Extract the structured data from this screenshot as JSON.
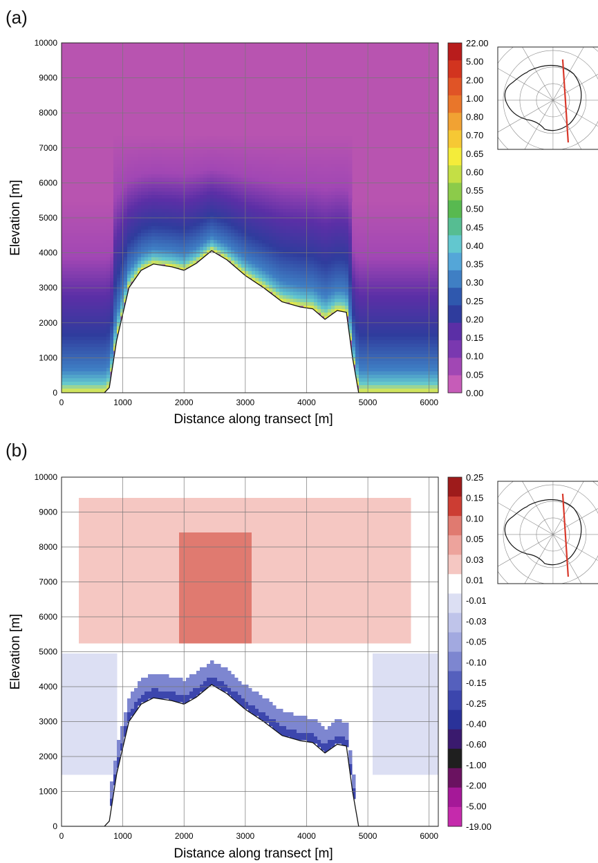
{
  "panels": [
    {
      "label": "(a)",
      "chart_data": {
        "type": "contour",
        "xlabel": "Distance along transect [m]",
        "ylabel": "Elevation [m]",
        "xlim": [
          0,
          6150
        ],
        "ylim": [
          0,
          10000
        ],
        "xticks": [
          "0",
          "1000",
          "2000",
          "3000",
          "4000",
          "5000",
          "6000"
        ],
        "yticks": [
          "0",
          "1000",
          "2000",
          "3000",
          "4000",
          "5000",
          "6000",
          "7000",
          "8000",
          "9000",
          "10000"
        ],
        "grid": true,
        "colorbar": {
          "labels": [
            "22.00",
            "5.00",
            "2.00",
            "1.00",
            "0.80",
            "0.70",
            "0.65",
            "0.60",
            "0.55",
            "0.50",
            "0.45",
            "0.40",
            "0.35",
            "0.30",
            "0.25",
            "0.20",
            "0.15",
            "0.10",
            "0.05",
            "0.00"
          ],
          "colors": [
            "#b81c1c",
            "#d2341f",
            "#e05426",
            "#e9762a",
            "#f1a233",
            "#f6c834",
            "#f4ec3a",
            "#c4df45",
            "#8ccb4a",
            "#58b950",
            "#56bd92",
            "#62c7cf",
            "#54a6d8",
            "#3f7fc4",
            "#2f58ae",
            "#2f3c9d",
            "#5b2fa6",
            "#7a38b0",
            "#a147b4",
            "#c65cb8"
          ]
        },
        "terrain_profile": {
          "x": [
            0,
            700,
            780,
            900,
            1100,
            1300,
            1500,
            1800,
            2000,
            2200,
            2450,
            2700,
            3000,
            3300,
            3600,
            3900,
            4100,
            4300,
            4500,
            4650,
            4750,
            4850,
            5000,
            6150
          ],
          "y": [
            0,
            0,
            150,
            1500,
            3000,
            3500,
            3680,
            3600,
            3500,
            3700,
            4060,
            3800,
            3350,
            3000,
            2600,
            2450,
            2400,
            2100,
            2350,
            2300,
            1000,
            0,
            0,
            0
          ]
        }
      },
      "inset_map": {
        "name": "antarctica-transect-map",
        "line_color": "#d8382a"
      }
    },
    {
      "label": "(b)",
      "chart_data": {
        "type": "contour",
        "xlabel": "Distance along transect [m]",
        "ylabel": "Elevation [m]",
        "xlim": [
          0,
          6150
        ],
        "ylim": [
          0,
          10000
        ],
        "xticks": [
          "0",
          "1000",
          "2000",
          "3000",
          "4000",
          "5000",
          "6000"
        ],
        "yticks": [
          "0",
          "1000",
          "2000",
          "3000",
          "4000",
          "5000",
          "6000",
          "7000",
          "8000",
          "9000",
          "10000"
        ],
        "grid": true,
        "colorbar": {
          "labels": [
            "0.25",
            "0.15",
            "0.10",
            "0.05",
            "0.03",
            "0.01",
            "-0.01",
            "-0.03",
            "-0.05",
            "-0.10",
            "-0.15",
            "-0.25",
            "-0.40",
            "-0.60",
            "-1.00",
            "-2.00",
            "-5.00",
            "-19.00"
          ],
          "colors": [
            "#9e1b1b",
            "#cc3d33",
            "#e07a70",
            "#eda39c",
            "#f5c7c2",
            "#ffffff",
            "#dcdff3",
            "#bfc4ea",
            "#a2a9e0",
            "#7d86d0",
            "#5560bd",
            "#3c46ad",
            "#2a3299",
            "#3a1a6e",
            "#1f1f1f",
            "#6a1260",
            "#a51898",
            "#c52aac"
          ]
        },
        "terrain_profile": {
          "x": [
            0,
            700,
            780,
            900,
            1100,
            1300,
            1500,
            1800,
            2000,
            2200,
            2450,
            2700,
            3000,
            3300,
            3600,
            3900,
            4100,
            4300,
            4500,
            4650,
            4750,
            4850,
            5000,
            6150
          ],
          "y": [
            0,
            0,
            150,
            1500,
            3000,
            3500,
            3680,
            3600,
            3500,
            3700,
            4060,
            3800,
            3350,
            3000,
            2600,
            2450,
            2400,
            2100,
            2350,
            2300,
            1000,
            0,
            0,
            0
          ]
        }
      },
      "inset_map": {
        "name": "antarctica-transect-map",
        "line_color": "#d8382a"
      }
    }
  ]
}
